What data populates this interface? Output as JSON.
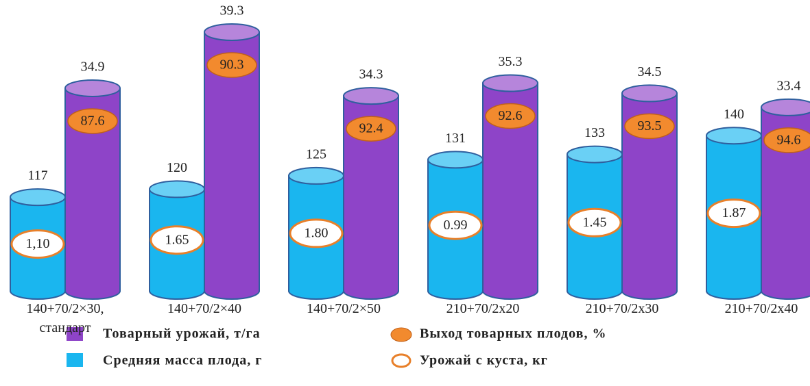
{
  "chart_data": {
    "type": "cylinder-bar",
    "categories": [
      "140+70/2×30,\nстандарт",
      "140+70/2×40",
      "140+70/2×50",
      "210+70/2x20",
      "210+70/2x30",
      "210+70/2x40"
    ],
    "ylim": [
      82,
      182
    ],
    "y2lim": [
      19,
      40
    ],
    "series": [
      {
        "name": "Товарный урожай, т/га",
        "color": "#8e44c8",
        "axis": "y2",
        "values": [
          34.9,
          39.3,
          34.3,
          35.3,
          34.5,
          33.4
        ]
      },
      {
        "name": "Средняя масса плода, г",
        "color": "#1ab6ef",
        "values": [
          117,
          120,
          125,
          131,
          133,
          140
        ]
      },
      {
        "name": "Выход товарных плодов, %",
        "color": "#f28a2e",
        "values": [
          87.6,
          90.3,
          92.4,
          92.6,
          93.5,
          94.6
        ]
      },
      {
        "name": "Урожай с куста, кг",
        "color": "#ffffff",
        "values": [
          1.1,
          1.65,
          1.8,
          0.99,
          1.45,
          1.87
        ],
        "value_labels": [
          "1,10",
          "1.65",
          "1.80",
          "0.99",
          "1.45",
          "1.87"
        ]
      }
    ]
  }
}
